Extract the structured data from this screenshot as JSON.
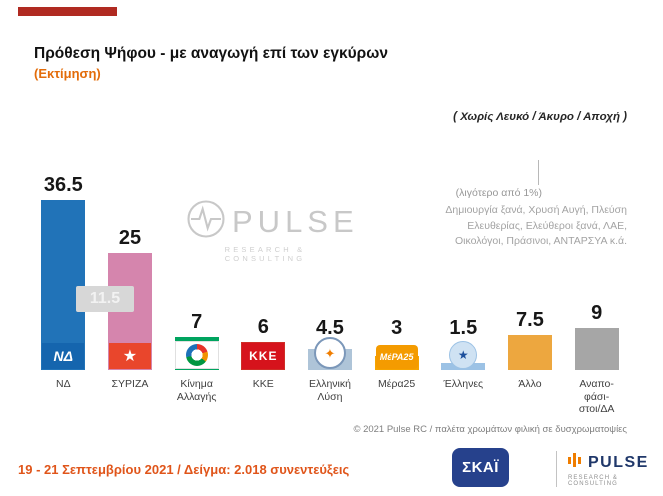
{
  "header": {
    "title": "Πρόθεση Ψήφου - με αναγωγή επί των εγκύρων",
    "subtitle": "(Εκτίμηση)",
    "exclusion_note": "( Χωρίς Λευκό / Άκυρο / Αποχή )"
  },
  "chart_data": {
    "type": "bar",
    "title": "Πρόθεση Ψήφου - με αναγωγή επί των εγκύρων (Εκτίμηση)",
    "ylim": [
      0,
      40
    ],
    "grid": false,
    "legend": "none",
    "categories": [
      "ΝΔ",
      "ΣΥΡΙΖΑ",
      "Κίνημα Αλλαγής",
      "ΚΚΕ",
      "Ελληνική Λύση",
      "Μέρα25",
      "Έλληνες",
      "Άλλο",
      "Αναποφάσιστοι/ΔΑ"
    ],
    "values": [
      36.5,
      25,
      7,
      6,
      4.5,
      3,
      1.5,
      7.5,
      9
    ],
    "lead_badge": "11.5",
    "bars": [
      {
        "label": "ΝΔ",
        "display_label": "ΝΔ",
        "value": 36.5,
        "display": "36.5",
        "color": "#2173b8",
        "logo": "nd",
        "logo_text": "ΝΔ"
      },
      {
        "label": "ΣΥΡΙΖΑ",
        "display_label": "ΣΥΡΙΖΑ",
        "value": 25,
        "display": "25",
        "color": "#d585ad",
        "logo": "syriza",
        "logo_text": "★"
      },
      {
        "label": "Κίνημα Αλλαγής",
        "display_label": "Κίνημα\nΑλλαγής",
        "value": 7,
        "display": "7",
        "color": "#00a45f",
        "logo": "kinal",
        "logo_text": ""
      },
      {
        "label": "ΚΚΕ",
        "display_label": "ΚΚΕ",
        "value": 6,
        "display": "6",
        "color": "#cf2e27",
        "logo": "kke",
        "logo_text": "ΚΚΕ"
      },
      {
        "label": "Ελληνική Λύση",
        "display_label": "Ελληνική\nΛύση",
        "value": 4.5,
        "display": "4.5",
        "color": "#aec4d8",
        "logo": "el",
        "logo_text": "✦"
      },
      {
        "label": "Μέρα25",
        "display_label": "Μέρα25",
        "value": 3,
        "display": "3",
        "color": "#f6a400",
        "logo": "mera25",
        "logo_text": "ΜέΡΑ25"
      },
      {
        "label": "Έλληνες",
        "display_label": "Έλληνες",
        "value": 1.5,
        "display": "1.5",
        "color": "#9cc2e5",
        "logo": "ellines",
        "logo_text": "★"
      },
      {
        "label": "Άλλο",
        "display_label": "Άλλο",
        "value": 7.5,
        "display": "7.5",
        "color": "#eda73f",
        "logo": "none",
        "logo_text": ""
      },
      {
        "label": "Αναποφάσιστοι/ΔΑ",
        "display_label": "Αναπο-\nφάσι-\nστοι/ΔΑ",
        "value": 9,
        "display": "9",
        "color": "#a6a6a6",
        "logo": "none",
        "logo_text": ""
      }
    ]
  },
  "small_parties": {
    "title": "(λιγότερο από 1%)",
    "lines": [
      "Δημιουργία ξανά, Χρυσή Αυγή, Πλεύση",
      "Ελευθερίας, Ελεύθεροι ξανά, ΛΑΕ,",
      "Οικολόγοι, Πράσινοι, ΑΝΤΑΡΣΥΑ  κ.ά."
    ]
  },
  "watermark": {
    "brand": "PULSE",
    "tagline": "RESEARCH  &  CONSULTING"
  },
  "footer": {
    "copyright": "© 2021 Pulse RC  /   παλέτα χρωμάτων φιλική σε δυσχρωματοψίες",
    "fieldwork": "19 - 21 Σεπτεμβρίου 2021  /  Δείγμα:  2.018 συνεντεύξεις",
    "skai_label": "ΣΚΑΪ",
    "pulse_label": "PULSE",
    "pulse_tagline": "RESEARCH & CONSULTING"
  }
}
